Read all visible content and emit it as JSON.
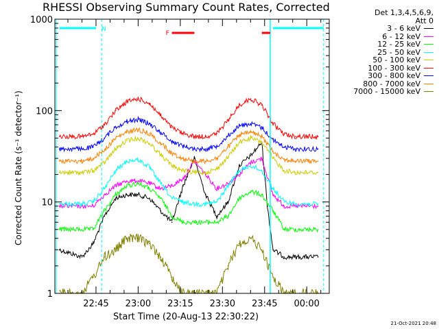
{
  "chart_data": {
    "type": "line",
    "title": "RHESSI Observing Summary Count Rates, Corrected",
    "xlabel": "Start Time (20-Aug-13 22:30:22)",
    "ylabel": "Corrected Count Rate (s⁻¹ detector⁻¹)",
    "x_range": [
      "22:30:22",
      "00:08:00"
    ],
    "ylim": [
      1,
      1000
    ],
    "y_scale": "log",
    "x_tick_labels": [
      "22:45",
      "23:00",
      "23:15",
      "23:30",
      "23:45",
      "00:00"
    ],
    "y_tick_labels": [
      "1",
      "10",
      "100",
      "1000"
    ],
    "legend_header": [
      "Det 1,3,4,5,6,9,",
      "Att 0"
    ],
    "flags": {
      "N_label": "N",
      "F_label": "F"
    },
    "series": [
      {
        "name": "3 - 6 keV",
        "color": "#000000",
        "x": [
          "22:32",
          "22:40",
          "22:44",
          "22:48",
          "22:52",
          "22:56",
          "23:00",
          "23:04",
          "23:08",
          "23:12",
          "23:16",
          "23:20",
          "23:24",
          "23:28",
          "23:32",
          "23:36",
          "23:40",
          "23:44",
          "23:46",
          "23:48",
          "23:52",
          "23:56",
          "00:00",
          "00:04"
        ],
        "values": [
          3,
          2.5,
          3.5,
          7,
          11,
          12,
          12,
          11,
          8,
          6,
          15,
          30,
          12,
          7,
          10,
          25,
          32,
          45,
          9,
          3,
          2.5,
          2.5,
          2.5,
          2.5
        ]
      },
      {
        "name": "6 - 12 keV",
        "color": "#ff00ff",
        "x": [
          "22:32",
          "22:40",
          "22:44",
          "22:48",
          "22:52",
          "22:56",
          "23:00",
          "23:04",
          "23:08",
          "23:12",
          "23:16",
          "23:20",
          "23:24",
          "23:28",
          "23:32",
          "23:36",
          "23:40",
          "23:44",
          "23:48",
          "23:52",
          "23:56",
          "00:00",
          "00:04"
        ],
        "values": [
          9,
          9,
          9,
          12,
          15,
          17,
          17,
          16,
          14,
          15,
          18,
          28,
          20,
          14,
          16,
          20,
          27,
          30,
          12,
          9,
          9,
          9,
          9
        ]
      },
      {
        "name": "12 - 25 keV",
        "color": "#00ff00",
        "x": [
          "22:32",
          "22:40",
          "22:44",
          "22:48",
          "22:52",
          "22:56",
          "23:00",
          "23:04",
          "23:08",
          "23:12",
          "23:16",
          "23:20",
          "23:24",
          "23:28",
          "23:32",
          "23:36",
          "23:40",
          "23:44",
          "23:48",
          "23:52",
          "23:56",
          "00:00",
          "00:04"
        ],
        "values": [
          5,
          5,
          5,
          8,
          12,
          15,
          16,
          14,
          11,
          7,
          6,
          6,
          6,
          6,
          7,
          11,
          13,
          12,
          8,
          5,
          5,
          5,
          5
        ]
      },
      {
        "name": "25 - 50 keV",
        "color": "#00ffff",
        "x": [
          "22:32",
          "22:40",
          "22:44",
          "22:48",
          "22:52",
          "22:56",
          "23:00",
          "23:04",
          "23:08",
          "23:12",
          "23:16",
          "23:20",
          "23:24",
          "23:28",
          "23:32",
          "23:36",
          "23:40",
          "23:44",
          "23:48",
          "23:52",
          "23:56",
          "00:00",
          "00:04"
        ],
        "values": [
          9.5,
          9.5,
          10,
          14,
          22,
          28,
          29,
          24,
          16,
          11,
          10,
          9.5,
          9.5,
          10,
          15,
          22,
          25,
          22,
          14,
          10,
          9.5,
          9.5,
          9.5
        ]
      },
      {
        "name": "50 - 100 keV",
        "color": "#cccc00",
        "x": [
          "22:32",
          "22:40",
          "22:44",
          "22:48",
          "22:52",
          "22:56",
          "23:00",
          "23:04",
          "23:08",
          "23:12",
          "23:16",
          "23:20",
          "23:24",
          "23:28",
          "23:32",
          "23:36",
          "23:40",
          "23:44",
          "23:48",
          "23:52",
          "23:56",
          "00:00",
          "00:04"
        ],
        "values": [
          21,
          21,
          22,
          27,
          38,
          47,
          50,
          44,
          33,
          25,
          22,
          21,
          21,
          23,
          31,
          45,
          50,
          45,
          30,
          22,
          21,
          21,
          21
        ]
      },
      {
        "name": "100 - 300 keV",
        "color": "#ff0000",
        "x": [
          "22:32",
          "22:40",
          "22:44",
          "22:48",
          "22:52",
          "22:56",
          "23:00",
          "23:04",
          "23:08",
          "23:12",
          "23:16",
          "23:20",
          "23:24",
          "23:28",
          "23:32",
          "23:36",
          "23:40",
          "23:44",
          "23:48",
          "23:52",
          "23:56",
          "00:00",
          "00:04"
        ],
        "values": [
          52,
          52,
          55,
          70,
          100,
          125,
          135,
          120,
          88,
          65,
          56,
          52,
          52,
          56,
          78,
          115,
          135,
          115,
          72,
          55,
          52,
          52,
          52
        ]
      },
      {
        "name": "300 - 800 keV",
        "color": "#0000ff",
        "x": [
          "22:32",
          "22:40",
          "22:44",
          "22:48",
          "22:52",
          "22:56",
          "23:00",
          "23:04",
          "23:08",
          "23:12",
          "23:16",
          "23:20",
          "23:24",
          "23:28",
          "23:32",
          "23:36",
          "23:40",
          "23:44",
          "23:48",
          "23:52",
          "23:56",
          "00:00",
          "00:04"
        ],
        "values": [
          38,
          38,
          40,
          50,
          66,
          76,
          80,
          72,
          58,
          46,
          41,
          38,
          38,
          41,
          53,
          68,
          72,
          65,
          48,
          40,
          38,
          38,
          38
        ]
      },
      {
        "name": "800 - 7000 keV",
        "color": "#ff8000",
        "x": [
          "22:32",
          "22:40",
          "22:44",
          "22:48",
          "22:52",
          "22:56",
          "23:00",
          "23:04",
          "23:08",
          "23:12",
          "23:16",
          "23:20",
          "23:24",
          "23:28",
          "23:32",
          "23:36",
          "23:40",
          "23:44",
          "23:48",
          "23:52",
          "23:56",
          "00:00",
          "00:04"
        ],
        "values": [
          28,
          28,
          30,
          37,
          50,
          58,
          62,
          56,
          44,
          34,
          30,
          28,
          28,
          30,
          40,
          54,
          58,
          52,
          36,
          29,
          28,
          28,
          28
        ]
      },
      {
        "name": "7000 - 15000 keV",
        "color": "#808000",
        "x": [
          "22:32",
          "22:40",
          "22:44",
          "22:48",
          "22:52",
          "22:56",
          "23:00",
          "23:04",
          "23:08",
          "23:12",
          "23:16",
          "23:20",
          "23:24",
          "23:28",
          "23:32",
          "23:36",
          "23:40",
          "23:44",
          "23:48",
          "23:52",
          "23:56",
          "00:00",
          "00:04"
        ],
        "values": [
          1,
          1,
          1.5,
          2.5,
          3,
          4,
          4,
          3.5,
          2.5,
          1.5,
          1,
          1,
          1,
          1,
          2,
          3.5,
          4,
          3,
          1.5,
          1,
          1,
          1,
          1
        ]
      }
    ]
  },
  "footer": {
    "timestamp": "21-Oct-2021 20:48"
  }
}
